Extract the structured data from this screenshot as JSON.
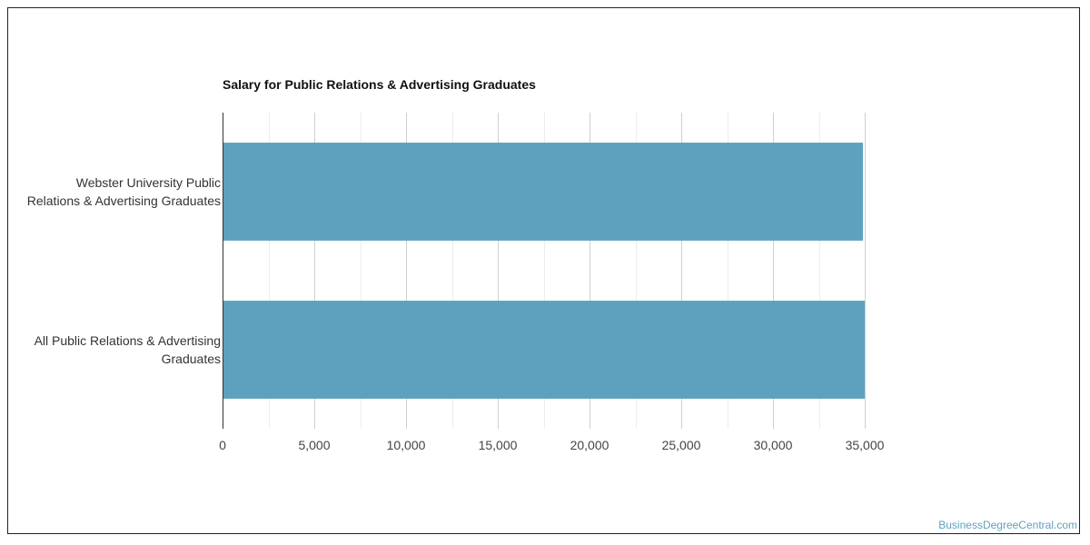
{
  "chart_data": {
    "type": "bar",
    "orientation": "horizontal",
    "title": "Salary for Public Relations & Advertising Graduates",
    "categories": [
      [
        "Webster University Public",
        "Relations & Advertising Graduates"
      ],
      [
        "All Public Relations & Advertising",
        "Graduates"
      ]
    ],
    "values": [
      34900,
      35000
    ],
    "xlim": [
      0,
      35000
    ],
    "xticks": [
      0,
      5000,
      10000,
      15000,
      20000,
      25000,
      30000,
      35000
    ],
    "xtick_labels": [
      "0",
      "5,000",
      "10,000",
      "15,000",
      "20,000",
      "25,000",
      "30,000",
      "35,000"
    ],
    "grid": true,
    "bar_color": "#5ea1be"
  },
  "watermark": "BusinessDegreeCentral.com"
}
